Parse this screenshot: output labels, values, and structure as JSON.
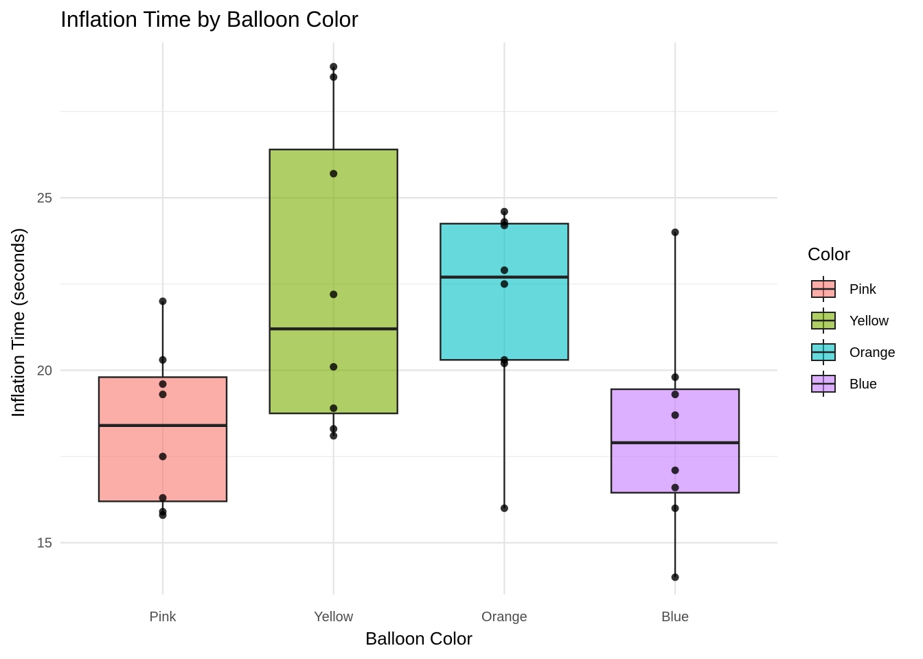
{
  "chart_data": {
    "type": "box",
    "title": "Inflation Time by Balloon Color",
    "xlabel": "Balloon Color",
    "ylabel": "Inflation Time (seconds)",
    "ylim": [
      13.5,
      29.5
    ],
    "yticks": [
      15,
      20,
      25
    ],
    "grid": true,
    "legend": {
      "title": "Color",
      "position": "right"
    },
    "categories": [
      "Pink",
      "Yellow",
      "Orange",
      "Blue"
    ],
    "colors": [
      "#F8766D",
      "#7CAE00",
      "#00BFC4",
      "#C77CFF"
    ],
    "boxes": [
      {
        "name": "Pink",
        "min": 15.8,
        "q1": 16.2,
        "median": 18.4,
        "q3": 19.8,
        "max": 22.0
      },
      {
        "name": "Yellow",
        "min": 18.1,
        "q1": 18.75,
        "median": 21.2,
        "q3": 26.4,
        "max": 28.8
      },
      {
        "name": "Orange",
        "min": 16.0,
        "q1": 20.3,
        "median": 22.7,
        "q3": 24.25,
        "max": 24.6
      },
      {
        "name": "Blue",
        "min": 14.0,
        "q1": 16.45,
        "median": 17.9,
        "q3": 19.45,
        "max": 24.0
      }
    ],
    "points": [
      {
        "category": "Pink",
        "values": [
          22.0,
          20.3,
          19.6,
          19.3,
          17.5,
          16.3,
          15.9,
          15.8
        ]
      },
      {
        "category": "Yellow",
        "values": [
          28.8,
          28.5,
          25.7,
          22.2,
          20.1,
          18.9,
          18.3,
          18.1
        ]
      },
      {
        "category": "Orange",
        "values": [
          24.6,
          24.3,
          24.2,
          22.9,
          22.5,
          20.3,
          20.2,
          16.0
        ]
      },
      {
        "category": "Blue",
        "values": [
          24.0,
          19.8,
          19.3,
          18.7,
          17.1,
          16.6,
          16.0,
          14.0
        ]
      }
    ]
  }
}
